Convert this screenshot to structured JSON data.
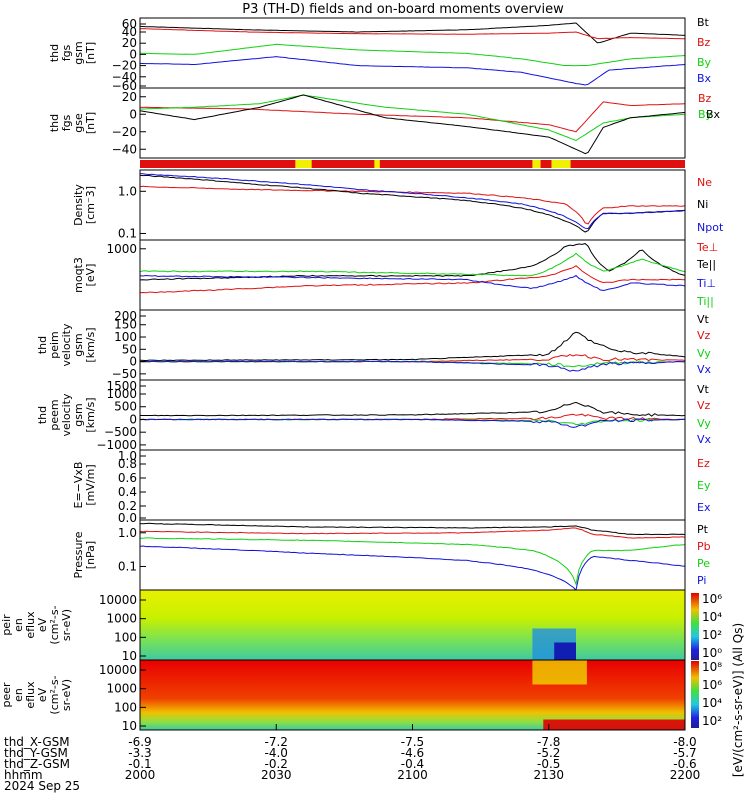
{
  "chart_data": {
    "title": "P3 (TH-D) fields and on-board moments overview",
    "time_ticks": [
      "2000",
      "2030",
      "2100",
      "2130",
      "2200"
    ],
    "orbit_rows": [
      {
        "label": "thd_X-GSM",
        "values": [
          "-6.9",
          "-7.2",
          "-7.5",
          "-7.8",
          "-8.0"
        ]
      },
      {
        "label": "thd_Y-GSM",
        "values": [
          "-3.3",
          "-4.0",
          "-4.6",
          "-5.2",
          "-5.7"
        ]
      },
      {
        "label": "thd_Z-GSM",
        "values": [
          "-0.1",
          "-0.2",
          "-0.4",
          "-0.5",
          "-0.6"
        ]
      },
      {
        "label": "hhmm",
        "values": [
          "2000",
          "2030",
          "2100",
          "2130",
          "2200"
        ]
      }
    ],
    "date_label": "2024 Sep 25",
    "colors": {
      "black": "#000000",
      "red": "#e01010",
      "green": "#10d010",
      "blue": "#1010e0",
      "yellow": "#f0f000"
    },
    "panels": [
      {
        "id": "fgs_gsm",
        "type": "line",
        "ylabel": [
          "thd",
          "fgs",
          "gsm",
          "[nT]"
        ],
        "yticks": [
          "60",
          "40",
          "20",
          "0",
          "−20",
          "−40",
          "−60"
        ],
        "ylim": [
          -60,
          65
        ],
        "series": [
          {
            "name": "Bt",
            "color": "#000000",
            "x": [
              0,
              0.2,
              0.4,
              0.6,
              0.75,
              0.8,
              0.84,
              0.9,
              1.0
            ],
            "y": [
              50,
              44,
              40,
              44,
              52,
              56,
              20,
              38,
              34
            ]
          },
          {
            "name": "Bz",
            "color": "#e01010",
            "x": [
              0,
              0.2,
              0.4,
              0.6,
              0.75,
              0.8,
              0.84,
              0.9,
              1.0
            ],
            "y": [
              46,
              40,
              37,
              36,
              38,
              40,
              28,
              30,
              28
            ]
          },
          {
            "name": "By",
            "color": "#10d010",
            "x": [
              0,
              0.1,
              0.25,
              0.4,
              0.6,
              0.7,
              0.78,
              0.82,
              0.9,
              1.0
            ],
            "y": [
              2,
              0,
              18,
              8,
              2,
              -8,
              -20,
              -20,
              -8,
              -2
            ]
          },
          {
            "name": "Bx",
            "color": "#1010e0",
            "x": [
              0,
              0.1,
              0.25,
              0.4,
              0.6,
              0.7,
              0.8,
              0.82,
              0.86,
              1.0
            ],
            "y": [
              -16,
              -18,
              -4,
              -20,
              -24,
              -32,
              -52,
              -55,
              -28,
              -18
            ]
          }
        ]
      },
      {
        "id": "fgs_gse",
        "type": "line",
        "ylabel": [
          "thd",
          "fgs",
          "gse",
          "[nT]"
        ],
        "yticks": [
          "20",
          "0",
          "−20",
          "−40"
        ],
        "ylim": [
          -50,
          30
        ],
        "series": [
          {
            "name": "Bz",
            "color": "#e01010",
            "x": [
              0,
              0.2,
              0.4,
              0.6,
              0.75,
              0.8,
              0.85,
              0.9,
              1.0
            ],
            "y": [
              8,
              6,
              0,
              -4,
              -12,
              -20,
              14,
              10,
              12
            ]
          },
          {
            "name": "By",
            "color": "#10d010",
            "x": [
              0,
              0.1,
              0.22,
              0.3,
              0.45,
              0.6,
              0.75,
              0.8,
              0.85,
              0.9,
              1.0
            ],
            "y": [
              6,
              8,
              12,
              22,
              8,
              0,
              -18,
              -30,
              -10,
              -4,
              0
            ]
          },
          {
            "name": "Bx",
            "color": "#000000",
            "x": [
              0,
              0.1,
              0.22,
              0.3,
              0.45,
              0.6,
              0.75,
              0.8,
              0.82,
              0.85,
              0.9,
              1.0
            ],
            "y": [
              4,
              -6,
              8,
              22,
              -4,
              -14,
              -26,
              -40,
              -46,
              -15,
              -4,
              2
            ]
          }
        ]
      },
      {
        "id": "bar",
        "type": "bar"
      },
      {
        "id": "density",
        "type": "line",
        "ylabel": [
          "Density",
          "[cm⁻3]"
        ],
        "yticks": [
          "1.0",
          "0.1"
        ],
        "ylim": [
          0.07,
          3.2
        ],
        "log": true,
        "series": [
          {
            "name": "Ne",
            "color": "#e01010",
            "x": [
              0,
              0.2,
              0.4,
              0.6,
              0.7,
              0.78,
              0.82,
              0.85,
              0.9,
              1.0
            ],
            "y": [
              1.3,
              1.1,
              1.0,
              0.9,
              0.7,
              0.5,
              0.15,
              0.4,
              0.45,
              0.45
            ]
          },
          {
            "name": "Ni",
            "color": "#000000",
            "x": [
              0,
              0.2,
              0.4,
              0.6,
              0.7,
              0.78,
              0.82,
              0.85,
              0.9,
              1.0
            ],
            "y": [
              2.4,
              1.5,
              0.9,
              0.6,
              0.4,
              0.2,
              0.1,
              0.3,
              0.3,
              0.35
            ]
          },
          {
            "name": "Npot",
            "color": "#1010e0",
            "x": [
              0,
              0.2,
              0.4,
              0.6,
              0.7,
              0.78,
              0.82,
              0.85,
              0.9,
              1.0
            ],
            "y": [
              2.6,
              1.8,
              1.1,
              0.7,
              0.5,
              0.25,
              0.12,
              0.3,
              0.3,
              0.35
            ]
          }
        ]
      },
      {
        "id": "temp",
        "type": "line",
        "ylabel": [
          "moqt3",
          "[eV]"
        ],
        "yticks": [
          "1000"
        ],
        "ylim": [
          12000,
          700
        ],
        "log": true,
        "series": [
          {
            "name": "Te⊥",
            "color": "#e01010",
            "x": [
              0,
              0.3,
              0.6,
              0.75,
              0.8,
              0.85,
              0.9,
              1.0
            ],
            "y": [
              6000,
              4500,
              4000,
              3000,
              2000,
              4000,
              3500,
              3500
            ]
          },
          {
            "name": "Te||",
            "color": "#000000",
            "x": [
              0,
              0.3,
              0.6,
              0.72,
              0.78,
              0.82,
              0.86,
              0.92,
              1.0
            ],
            "y": [
              3500,
              3000,
              3000,
              2000,
              900,
              800,
              2500,
              1000,
              3000
            ]
          },
          {
            "name": "Ti⊥",
            "color": "#1010e0",
            "x": [
              0,
              0.3,
              0.6,
              0.72,
              0.8,
              0.85,
              0.9,
              1.0
            ],
            "y": [
              3000,
              3200,
              3500,
              5000,
              3000,
              5500,
              4000,
              4500
            ]
          },
          {
            "name": "Ti||",
            "color": "#10d010",
            "x": [
              0,
              0.3,
              0.6,
              0.72,
              0.8,
              0.85,
              0.92,
              1.0
            ],
            "y": [
              2500,
              2500,
              2800,
              3000,
              1200,
              2500,
              1500,
              2500
            ]
          }
        ]
      },
      {
        "id": "peim",
        "type": "line",
        "ylabel": [
          "thd",
          "peim",
          "velocity",
          "gsm",
          "[km/s]"
        ],
        "yticks": [
          "200",
          "150",
          "100",
          "50",
          "0",
          "−50"
        ],
        "ylim": [
          -75,
          210
        ],
        "noisy": true,
        "series": [
          {
            "name": "Vt",
            "color": "#000000",
            "x": [
              0,
              0.5,
              0.75,
              0.8,
              0.83,
              0.88,
              0.95,
              1.0
            ],
            "y": [
              5,
              8,
              30,
              120,
              80,
              40,
              30,
              20
            ]
          },
          {
            "name": "Vz",
            "color": "#e01010",
            "x": [
              0,
              0.5,
              0.75,
              0.8,
              0.85,
              1.0
            ],
            "y": [
              0,
              0,
              10,
              30,
              10,
              5
            ]
          },
          {
            "name": "Vy",
            "color": "#10d010",
            "x": [
              0,
              0.5,
              0.75,
              0.8,
              0.85,
              1.0
            ],
            "y": [
              0,
              0,
              -10,
              -20,
              -5,
              0
            ]
          },
          {
            "name": "Vx",
            "color": "#1010e0",
            "x": [
              0,
              0.5,
              0.75,
              0.8,
              0.85,
              1.0
            ],
            "y": [
              0,
              0,
              -15,
              -40,
              -10,
              0
            ]
          }
        ]
      },
      {
        "id": "peem",
        "type": "line",
        "ylabel": [
          "thd",
          "peem",
          "velocity",
          "gsm",
          "[km/s]"
        ],
        "yticks": [
          "1500",
          "1000",
          "500",
          "0",
          "−500",
          "−1000"
        ],
        "ylim": [
          -1200,
          1550
        ],
        "noisy": true,
        "series": [
          {
            "name": "Vt",
            "color": "#000000",
            "x": [
              0,
              0.5,
              0.75,
              0.8,
              0.85,
              0.9,
              1.0
            ],
            "y": [
              150,
              180,
              300,
              700,
              300,
              200,
              150
            ]
          },
          {
            "name": "Vz",
            "color": "#e01010",
            "x": [
              0,
              0.5,
              0.75,
              0.8,
              0.85,
              1.0
            ],
            "y": [
              0,
              0,
              50,
              200,
              50,
              0
            ]
          },
          {
            "name": "Vy",
            "color": "#10d010",
            "x": [
              0,
              0.5,
              0.75,
              0.8,
              0.85,
              1.0
            ],
            "y": [
              0,
              0,
              -50,
              -200,
              -50,
              0
            ]
          },
          {
            "name": "Vx",
            "color": "#1010e0",
            "x": [
              0,
              0.5,
              0.75,
              0.8,
              0.85,
              1.0
            ],
            "y": [
              0,
              0,
              -80,
              -300,
              -50,
              0
            ]
          }
        ]
      },
      {
        "id": "efield",
        "type": "empty",
        "ylabel": [
          "E=−VxB",
          "[mV/m]"
        ],
        "yticks": [
          "1.0",
          "0.8",
          "0.6",
          "0.4",
          "0.2",
          "0.0"
        ],
        "ylim": [
          0,
          1
        ],
        "series": [
          {
            "name": "Ez",
            "color": "#e01010"
          },
          {
            "name": "Ey",
            "color": "#10d010"
          },
          {
            "name": "Ex",
            "color": "#1010e0"
          }
        ]
      },
      {
        "id": "pressure",
        "type": "line",
        "ylabel": [
          "Pressure",
          "[nPa]"
        ],
        "yticks": [
          "1.0",
          "0.1"
        ],
        "ylim": [
          0.02,
          2.4
        ],
        "log": true,
        "series": [
          {
            "name": "Pt",
            "color": "#000000",
            "x": [
              0,
              0.3,
              0.6,
              0.75,
              0.8,
              0.83,
              0.9,
              1.0
            ],
            "y": [
              1.9,
              1.5,
              1.4,
              1.5,
              1.6,
              1.2,
              0.9,
              0.9
            ]
          },
          {
            "name": "Pb",
            "color": "#e01010",
            "x": [
              0,
              0.3,
              0.6,
              0.75,
              0.8,
              0.83,
              0.9,
              1.0
            ],
            "y": [
              1.1,
              0.95,
              1.0,
              1.2,
              1.4,
              0.9,
              0.7,
              0.75
            ]
          },
          {
            "name": "Pe",
            "color": "#10d010",
            "x": [
              0,
              0.3,
              0.6,
              0.72,
              0.8,
              0.83,
              0.9,
              1.0
            ],
            "y": [
              0.7,
              0.6,
              0.45,
              0.3,
              0.03,
              0.3,
              0.3,
              0.45
            ]
          },
          {
            "name": "Pi",
            "color": "#1010e0",
            "x": [
              0,
              0.3,
              0.6,
              0.72,
              0.8,
              0.83,
              0.9,
              1.0
            ],
            "y": [
              0.4,
              0.25,
              0.15,
              0.08,
              0.02,
              0.2,
              0.15,
              0.1
            ]
          }
        ]
      },
      {
        "id": "peir",
        "type": "spectrogram",
        "ylabel": [
          "thd",
          "peir",
          "en",
          "eflux",
          "eV",
          "(cm²-s-",
          "sr-eV)"
        ],
        "yticks": [
          "10000",
          "1000",
          "100",
          "10"
        ]
      },
      {
        "id": "peer",
        "type": "spectrogram",
        "ylabel": [
          "thd",
          "peer",
          "en",
          "eflux",
          "eV",
          "(cm²-s-",
          "sr-eV)"
        ],
        "yticks": [
          "10000",
          "1000",
          "100",
          "10"
        ]
      }
    ],
    "colorbar": {
      "ticks_top": [
        "10⁶",
        "10⁴",
        "10²",
        "10⁰"
      ],
      "ticks_bottom": [
        "10⁸",
        "10⁶",
        "10⁴",
        "10²"
      ],
      "label": "[eV/(cm²-s-sr-eV)] (All Qs)"
    }
  }
}
